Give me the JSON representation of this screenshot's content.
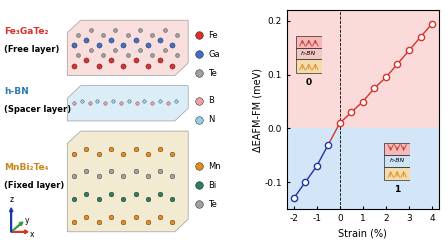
{
  "chart_data": {
    "type": "line",
    "x_label": "Strain (%)",
    "y_label": "ΔEAFM-FM (meV)",
    "x": [
      -2,
      -1.5,
      -1,
      -0.5,
      0,
      0.5,
      1,
      1.5,
      2,
      2.5,
      3,
      3.5,
      4
    ],
    "values": [
      -0.13,
      -0.1,
      -0.07,
      -0.03,
      0.01,
      0.03,
      0.05,
      0.075,
      0.095,
      0.12,
      0.145,
      0.17,
      0.195
    ],
    "colors": [
      "#1f35a8",
      "#1f35a8",
      "#1f35a8",
      "#1f35a8",
      "#d9312b",
      "#d9312b",
      "#d9312b",
      "#d9312b",
      "#d9312b",
      "#d9312b",
      "#d9312b",
      "#d9312b",
      "#d9312b"
    ],
    "marker": "o",
    "line_style": "solid",
    "threshold": 0,
    "xlim": [
      -2.3,
      4.3
    ],
    "ylim": [
      -0.15,
      0.22
    ],
    "xticks": [
      -2,
      -1,
      0,
      1,
      2,
      3,
      4
    ],
    "yticks": [
      -0.1,
      {
        "value": 0,
        "label": "0.0"
      },
      0.1,
      0.2
    ],
    "insets": [
      {
        "state": "0",
        "spacer": "h-BN",
        "color": "#f4c7c7"
      },
      {
        "state": "1",
        "spacer": "h-BN",
        "color": "#cfe3f7"
      }
    ]
  },
  "diagram": {
    "layers": [
      {
        "name": "Fe₃GaTe₂",
        "role": "(Free layer)",
        "color": "#d9312b"
      },
      {
        "name": "h-BN",
        "role": "(Spacer layer)",
        "color": "#2a7ab0"
      },
      {
        "name": "MnBi₂Te₄",
        "role": "(Fixed layer)",
        "color": "#c8871c"
      }
    ],
    "elements": [
      [
        {
          "symbol": "Fe",
          "color": "#d9312b"
        },
        {
          "symbol": "Ga",
          "color": "#3f6fc4"
        },
        {
          "symbol": "Te",
          "color": "#a0a0a0"
        }
      ],
      [
        {
          "symbol": "B",
          "color": "#f2a0a8"
        },
        {
          "symbol": "N",
          "color": "#8fd0ea"
        }
      ],
      [
        {
          "symbol": "Mn",
          "color": "#e58a1f"
        },
        {
          "symbol": "Bi",
          "color": "#2e7d5b"
        },
        {
          "symbol": "Te",
          "color": "#a0a0a0"
        }
      ]
    ],
    "axes_labels": [
      "x",
      "y",
      "z"
    ]
  }
}
